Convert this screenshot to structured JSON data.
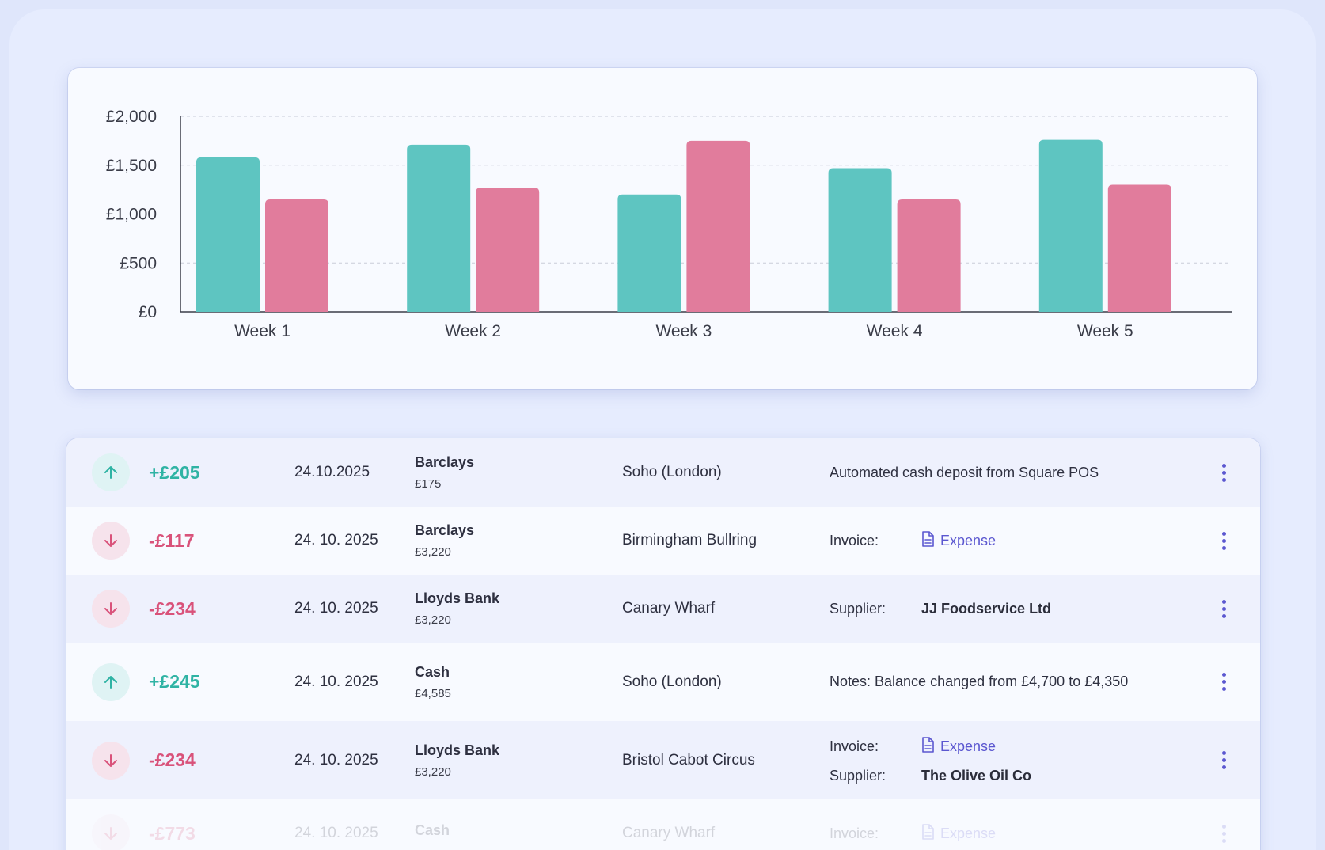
{
  "colors": {
    "income": "#5ec5c1",
    "expense": "#e17c9c",
    "positive_text": "#2fb3a4",
    "negative_text": "#d9527a",
    "link": "#5b57d0"
  },
  "chart_data": {
    "type": "bar",
    "categories": [
      "Week 1",
      "Week 2",
      "Week 3",
      "Week 4",
      "Week 5"
    ],
    "series": [
      {
        "values": [
          1580,
          1710,
          1200,
          1470,
          1760
        ]
      },
      {
        "values": [
          1150,
          1270,
          1750,
          1150,
          1300
        ]
      }
    ],
    "ylim": [
      0,
      2000
    ],
    "yticks": [
      0,
      500,
      1000,
      1500,
      2000
    ],
    "ytick_labels": [
      "£0",
      "£500",
      "£1,000",
      "£1,500",
      "£2,000"
    ],
    "grid": true,
    "title": "",
    "xlabel": "",
    "ylabel": ""
  },
  "transactions": [
    {
      "direction": "up",
      "direction_icon": "arrow-up-icon",
      "amount": "+£205",
      "date": "24.10.2025",
      "account": "Barclays",
      "balance": "£175",
      "location": "Soho (London)",
      "details": [
        {
          "type": "text",
          "text": "Automated cash deposit from Square POS"
        }
      ]
    },
    {
      "direction": "down",
      "direction_icon": "arrow-down-icon",
      "amount": "-£117",
      "date": "24. 10. 2025",
      "account": "Barclays",
      "balance": "£3,220",
      "location": "Birmingham Bullring",
      "details": [
        {
          "type": "link",
          "label": "Invoice:",
          "value": "Expense",
          "icon": "document-icon"
        }
      ]
    },
    {
      "direction": "down",
      "direction_icon": "arrow-down-icon",
      "amount": "-£234",
      "date": "24. 10. 2025",
      "account": "Lloyds Bank",
      "balance": "£3,220",
      "location": "Canary Wharf",
      "details": [
        {
          "type": "strong",
          "label": "Supplier:",
          "value": "JJ Foodservice Ltd"
        }
      ]
    },
    {
      "direction": "up",
      "direction_icon": "arrow-up-icon",
      "amount": "+£245",
      "date": "24. 10. 2025",
      "account": "Cash",
      "balance": "£4,585",
      "location": "Soho (London)",
      "details": [
        {
          "type": "text",
          "text": "Notes: Balance changed from £4,700 to £4,350"
        }
      ]
    },
    {
      "direction": "down",
      "direction_icon": "arrow-down-icon",
      "amount": "-£234",
      "date": "24. 10. 2025",
      "account": "Lloyds Bank",
      "balance": "£3,220",
      "location": "Bristol Cabot Circus",
      "details": [
        {
          "type": "link",
          "label": "Invoice:",
          "value": "Expense",
          "icon": "document-icon"
        },
        {
          "type": "strong",
          "label": "Supplier:",
          "value": "The Olive Oil Co"
        }
      ]
    },
    {
      "direction": "down",
      "direction_icon": "arrow-down-icon",
      "amount": "-£773",
      "date": "24. 10. 2025",
      "account": "Cash",
      "balance": "",
      "location": "Canary Wharf",
      "details": [
        {
          "type": "link",
          "label": "Invoice:",
          "value": "Expense",
          "icon": "document-icon"
        }
      ]
    }
  ],
  "row_menu_icon": "more-vertical-icon"
}
